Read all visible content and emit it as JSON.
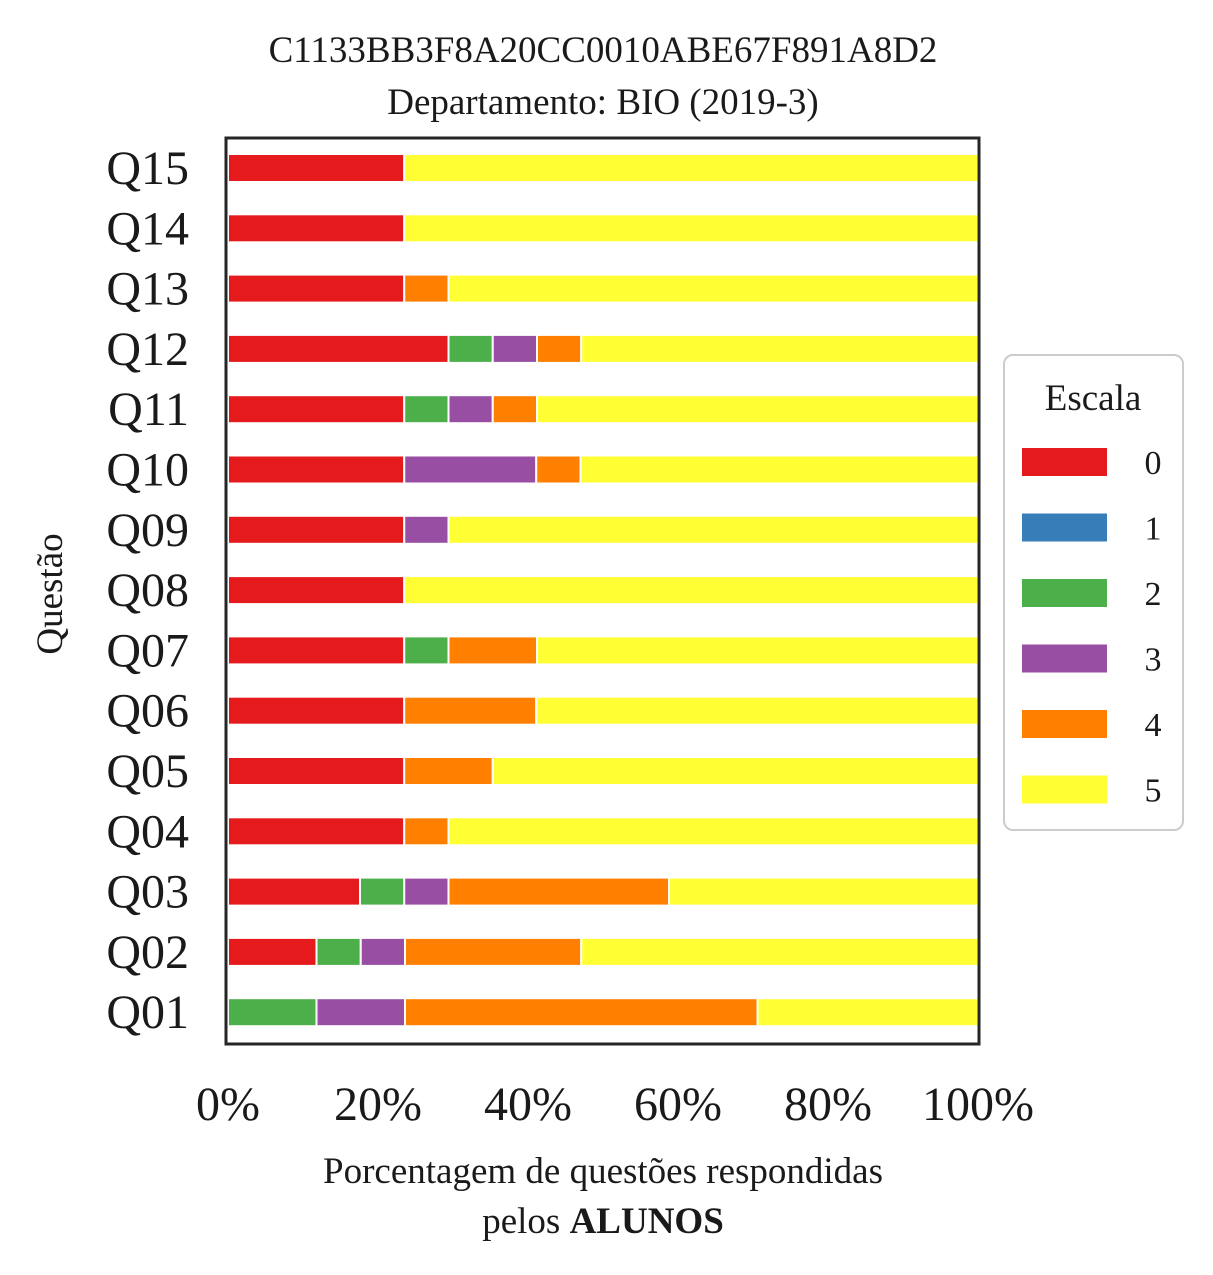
{
  "chart_data": {
    "type": "bar",
    "orientation": "horizontal",
    "stacked": true,
    "normalized_percent": true,
    "title": "C1133BB3F8A20CC0010ABE67F891A8D2",
    "subtitle": "Departamento: BIO (2019-3)",
    "xlabel_line1": "Porcentagem de questões respondidas",
    "xlabel_line2_prefix": "pelos ",
    "xlabel_line2_bold": "ALUNOS",
    "ylabel": "Questão",
    "xlim": [
      0,
      100
    ],
    "xticks": [
      "0%",
      "20%",
      "40%",
      "60%",
      "80%",
      "100%"
    ],
    "categories": [
      "Q01",
      "Q02",
      "Q03",
      "Q04",
      "Q05",
      "Q06",
      "Q07",
      "Q08",
      "Q09",
      "Q10",
      "Q11",
      "Q12",
      "Q13",
      "Q14",
      "Q15"
    ],
    "series": [
      {
        "name": "0",
        "color": "#e41a1c",
        "values": [
          0,
          11.8,
          17.6,
          23.5,
          23.5,
          23.5,
          23.5,
          23.5,
          23.5,
          23.5,
          23.5,
          29.4,
          23.5,
          23.5,
          23.5
        ]
      },
      {
        "name": "1",
        "color": "#377eb8",
        "values": [
          0,
          0,
          0,
          0,
          0,
          0,
          0,
          0,
          0,
          0,
          0,
          0,
          0,
          0,
          0
        ]
      },
      {
        "name": "2",
        "color": "#4daf4a",
        "values": [
          11.8,
          5.9,
          5.9,
          0,
          0,
          0,
          5.9,
          0,
          0,
          0,
          5.9,
          5.9,
          0,
          0,
          0
        ]
      },
      {
        "name": "3",
        "color": "#984ea3",
        "values": [
          11.8,
          5.9,
          5.9,
          0,
          0,
          0,
          0,
          0,
          5.9,
          17.6,
          5.9,
          5.9,
          0,
          0,
          0
        ]
      },
      {
        "name": "4",
        "color": "#ff7f00",
        "values": [
          47.0,
          23.5,
          29.4,
          5.9,
          11.8,
          17.6,
          11.8,
          0,
          0,
          5.9,
          5.9,
          5.9,
          5.9,
          0,
          0
        ]
      },
      {
        "name": "5",
        "color": "#ffff33",
        "values": [
          29.4,
          52.9,
          41.2,
          70.6,
          64.7,
          58.9,
          58.8,
          76.5,
          70.6,
          53.0,
          58.8,
          52.9,
          70.6,
          76.5,
          76.5
        ]
      }
    ],
    "legend": {
      "title": "Escala",
      "position": "center-right"
    },
    "grid": false
  }
}
